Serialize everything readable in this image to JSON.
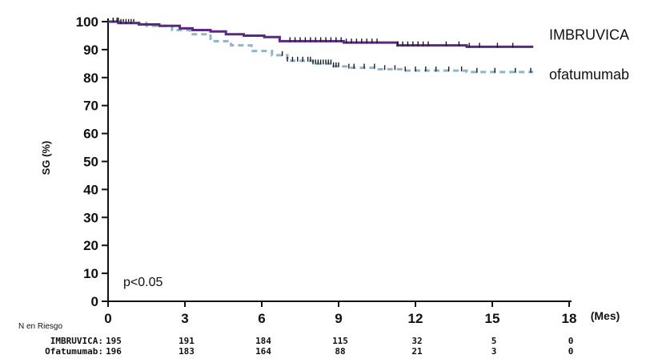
{
  "chart_data": {
    "type": "line",
    "ylabel": "SG (%)",
    "x_unit_label": "(Mes)",
    "xticks": [
      0,
      3,
      6,
      9,
      12,
      15,
      18
    ],
    "yticks": [
      0,
      10,
      20,
      30,
      40,
      50,
      60,
      70,
      80,
      90,
      100
    ],
    "xlim": [
      0,
      18
    ],
    "ylim": [
      0,
      100
    ],
    "grid": false,
    "annotation": "p<0.05",
    "series": [
      {
        "name": "IMBRUVICA",
        "color": "#5a2a82",
        "style": "solid",
        "points": [
          [
            0,
            100
          ],
          [
            0.4,
            99.5
          ],
          [
            1.2,
            99
          ],
          [
            2,
            98.5
          ],
          [
            2.8,
            97.6
          ],
          [
            3.3,
            97
          ],
          [
            4,
            96.5
          ],
          [
            4.6,
            95.5
          ],
          [
            5.3,
            95
          ],
          [
            6.1,
            94.5
          ],
          [
            6.7,
            93
          ],
          [
            8.5,
            93
          ],
          [
            9.2,
            92.5
          ],
          [
            11,
            92.5
          ],
          [
            11.3,
            91.5
          ],
          [
            13,
            91.5
          ],
          [
            14,
            91
          ],
          [
            16.6,
            91
          ]
        ],
        "censor_x": [
          0.2,
          0.35,
          0.5,
          0.7,
          0.9,
          7.1,
          7.3,
          7.5,
          7.7,
          7.9,
          8.1,
          8.3,
          8.5,
          8.7,
          8.9,
          9.1,
          9.3,
          9.5,
          9.7,
          9.9,
          10.1,
          10.3,
          10.5,
          11.3,
          11.5,
          11.7,
          11.9,
          12.1,
          12.3,
          12.5,
          13.2,
          13.7,
          14.1,
          14.5,
          15.2,
          15.8
        ]
      },
      {
        "name": "ofatumumab",
        "color": "#8fb4cc",
        "style": "dashed",
        "points": [
          [
            0,
            100
          ],
          [
            0.5,
            99.5
          ],
          [
            1.5,
            98.5
          ],
          [
            2.5,
            97
          ],
          [
            3.2,
            95.5
          ],
          [
            4,
            93
          ],
          [
            4.8,
            91.5
          ],
          [
            5.6,
            89.5
          ],
          [
            6.4,
            88
          ],
          [
            7,
            86
          ],
          [
            8,
            85
          ],
          [
            8.8,
            84
          ],
          [
            9.3,
            83.5
          ],
          [
            10.5,
            83
          ],
          [
            11.5,
            82.5
          ],
          [
            13,
            82.5
          ],
          [
            14,
            82
          ],
          [
            16.6,
            82
          ]
        ],
        "censor_x": [
          0.2,
          0.4,
          0.6,
          0.8,
          1.0,
          6.8,
          7.0,
          7.2,
          7.4,
          7.6,
          7.8,
          7.9,
          8.0,
          8.1,
          8.2,
          8.3,
          8.4,
          8.5,
          8.6,
          8.7,
          8.8,
          8.9,
          9.0,
          9.4,
          9.6,
          10.0,
          10.4,
          10.8,
          11.2,
          11.6,
          12.0,
          12.4,
          12.8,
          13.3,
          13.8,
          14.4,
          15.1,
          15.9,
          16.5
        ]
      }
    ],
    "risk_table": {
      "title": "N en Riesgo",
      "rows": [
        {
          "label": "IMBRUVICA:",
          "values": [
            "195",
            "191",
            "184",
            "115",
            "32",
            "5",
            "0"
          ]
        },
        {
          "label": "Ofatumumab:",
          "values": [
            "196",
            "183",
            "164",
            "88",
            "21",
            "3",
            "0"
          ]
        }
      ]
    }
  }
}
